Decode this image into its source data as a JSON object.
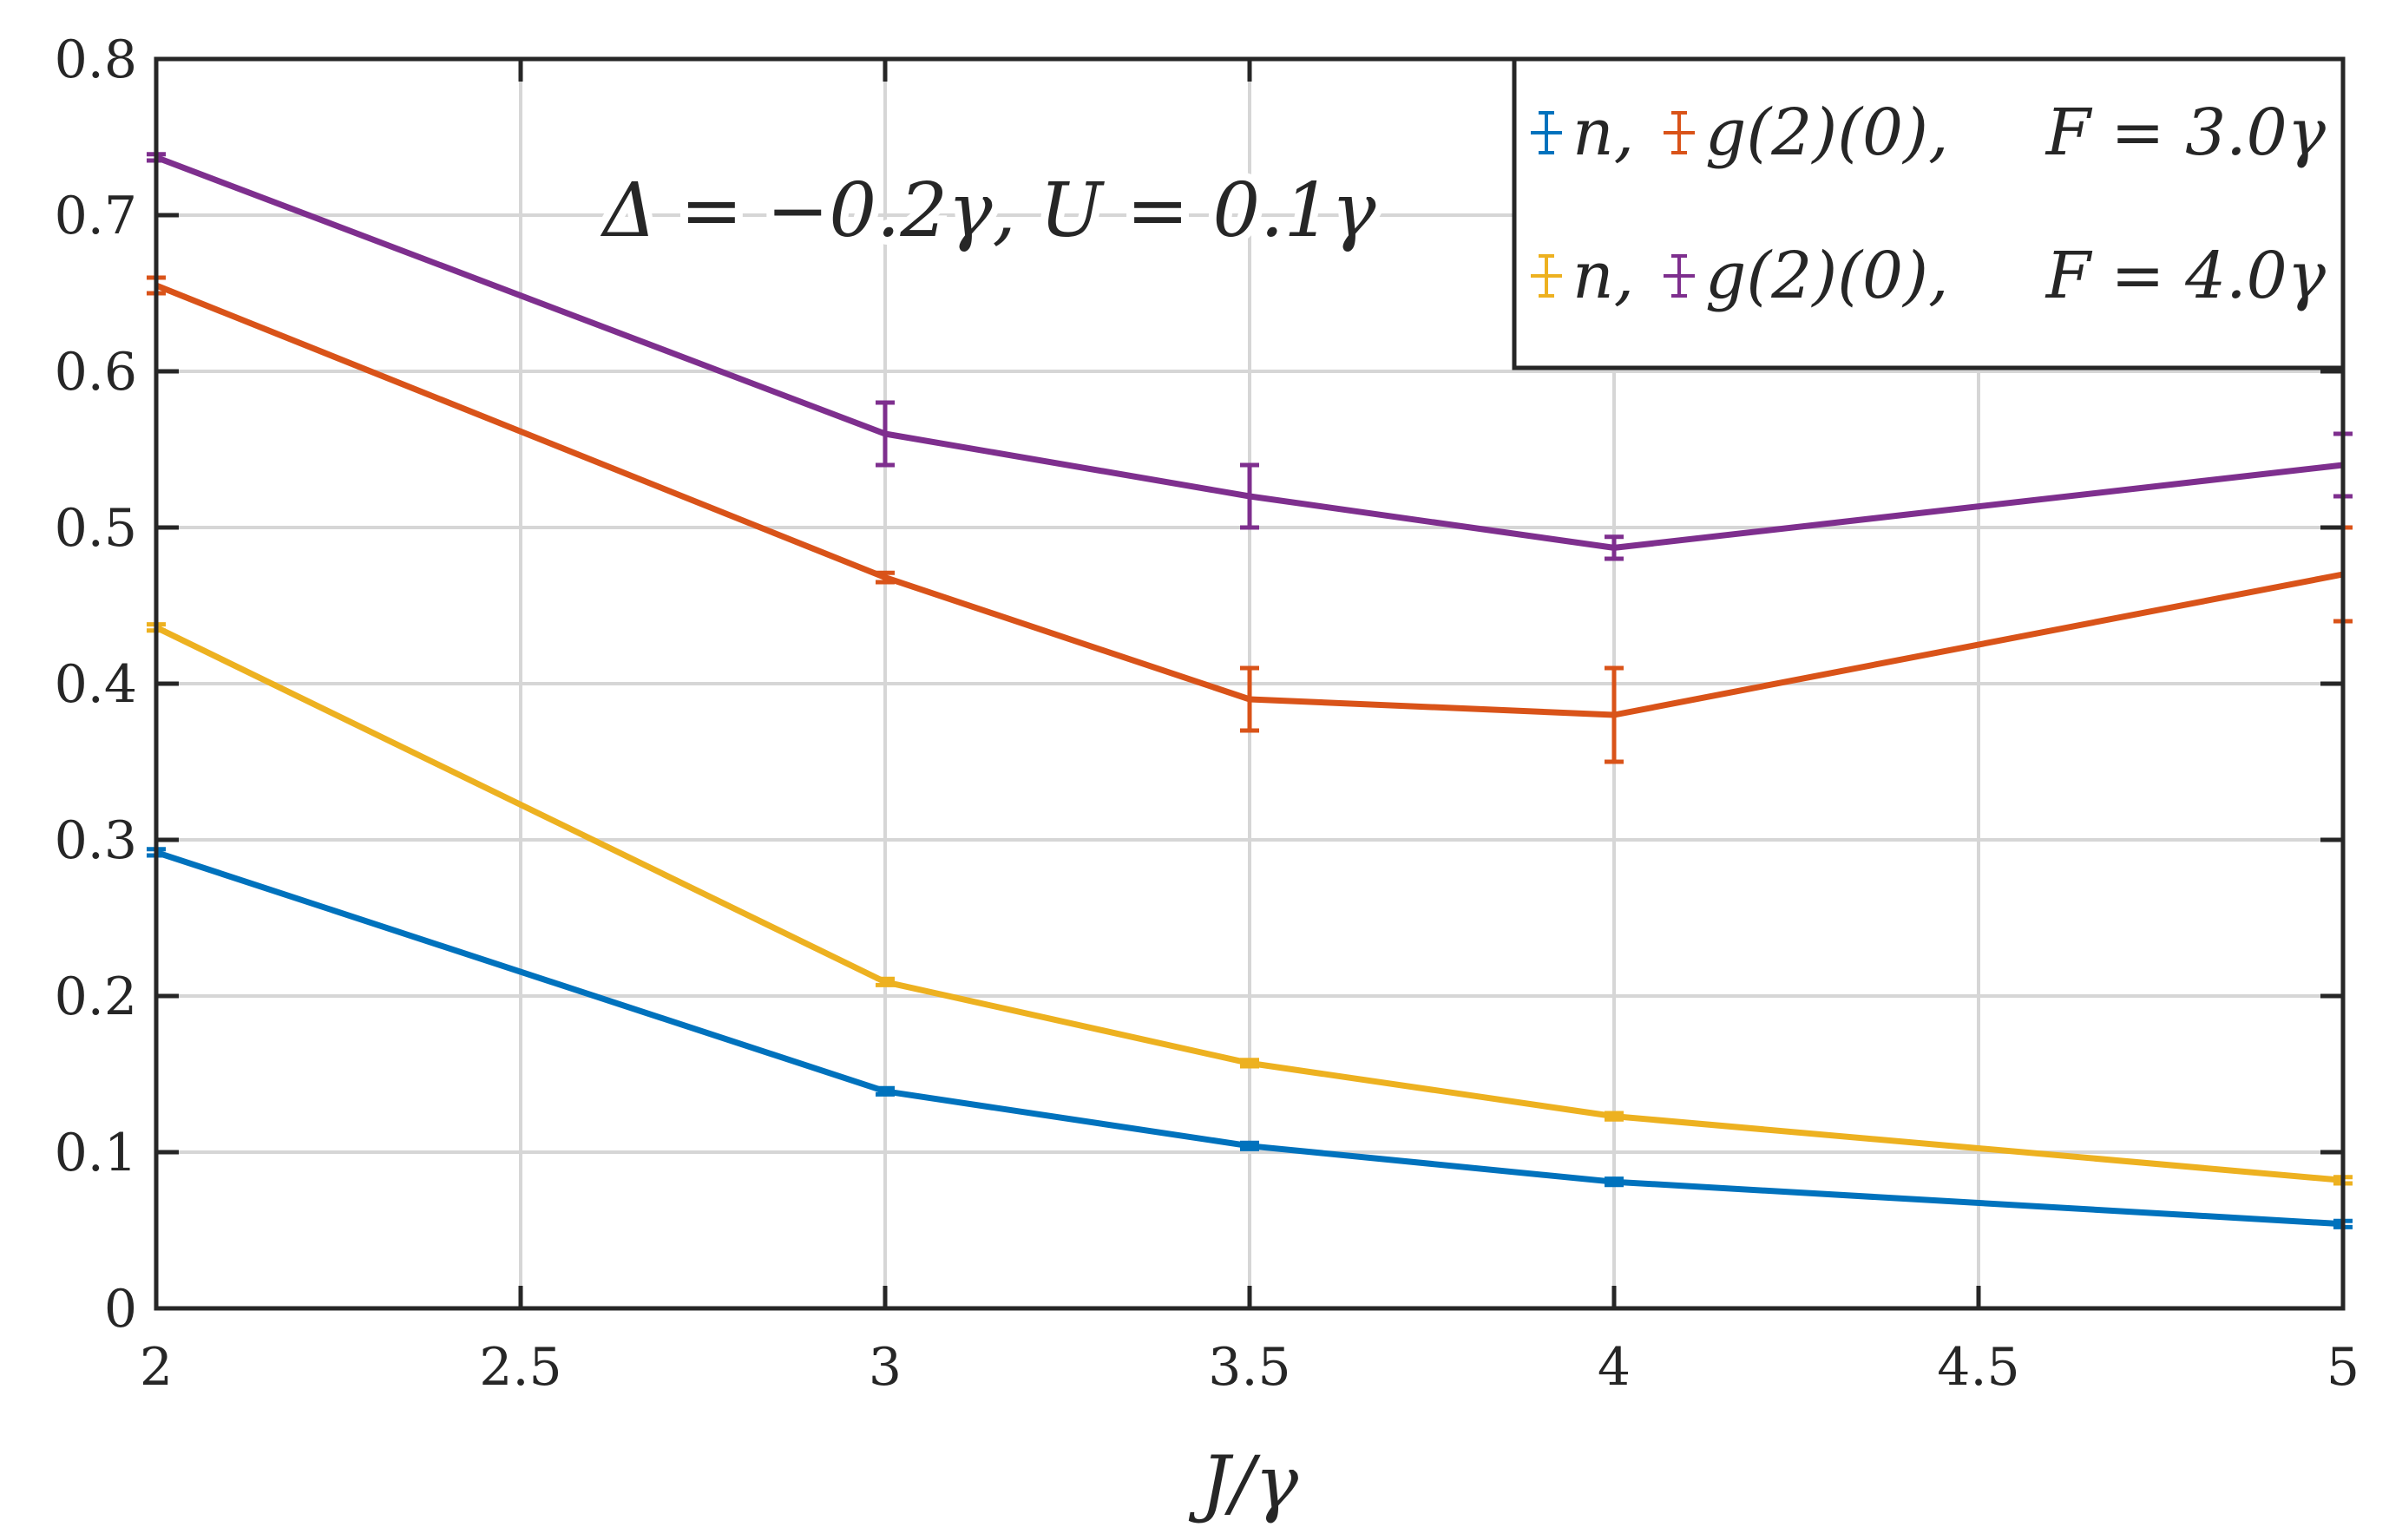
{
  "chart_data": {
    "type": "line",
    "xlabel": "J/γ",
    "ylabel": "",
    "xlim": [
      2,
      5
    ],
    "ylim": [
      0,
      0.8
    ],
    "xticks": [
      "2",
      "2.5",
      "3",
      "3.5",
      "4",
      "4.5",
      "5"
    ],
    "yticks": [
      "0",
      "0.1",
      "0.2",
      "0.3",
      "0.4",
      "0.5",
      "0.6",
      "0.7",
      "0.8"
    ],
    "grid": true,
    "legend_position": "top-right",
    "annotation": "Δ = −0.2γ, U = 0.1γ",
    "legend": [
      {
        "pair": [
          "n",
          "g(2)(0)"
        ],
        "label": "F = 3.0γ"
      },
      {
        "pair": [
          "n",
          "g(2)(0)"
        ],
        "label": "F = 4.0γ"
      }
    ],
    "series": [
      {
        "color": "#0072BD",
        "x": [
          2,
          3,
          3.5,
          4,
          5
        ],
        "y": [
          0.292,
          0.139,
          0.104,
          0.081,
          0.054
        ],
        "err": [
          0.002,
          0.002,
          0.002,
          0.002,
          0.002
        ]
      },
      {
        "color": "#D95319",
        "x": [
          2,
          3,
          3.5,
          4,
          5
        ],
        "y": [
          0.655,
          0.468,
          0.39,
          0.38,
          0.47
        ],
        "err": [
          0.005,
          0.003,
          0.02,
          0.03,
          0.03
        ]
      },
      {
        "color": "#EDB120",
        "x": [
          2,
          3,
          3.5,
          4,
          5
        ],
        "y": [
          0.436,
          0.209,
          0.157,
          0.123,
          0.082
        ],
        "err": [
          0.002,
          0.002,
          0.002,
          0.002,
          0.002
        ]
      },
      {
        "color": "#7E2F8E",
        "x": [
          2,
          3,
          3.5,
          4,
          5
        ],
        "y": [
          0.737,
          0.56,
          0.52,
          0.487,
          0.54
        ],
        "err": [
          0.002,
          0.02,
          0.02,
          0.007,
          0.02
        ]
      }
    ]
  }
}
